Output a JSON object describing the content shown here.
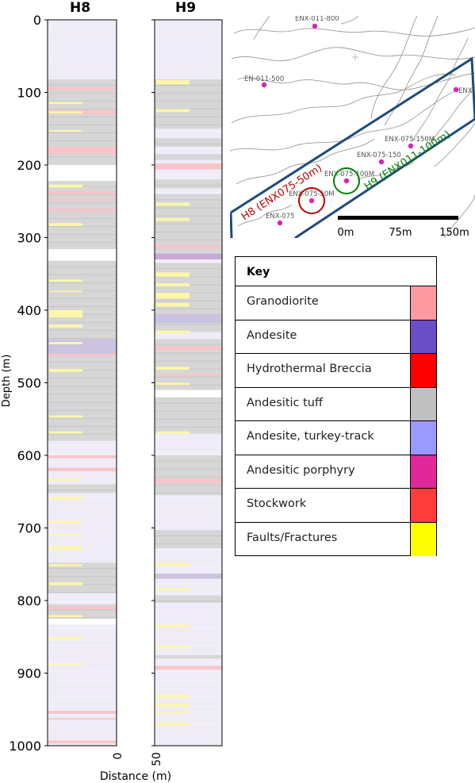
{
  "logs": [
    {
      "name": "H8",
      "base_color": "#efecf8",
      "segments": [
        {
          "from": 82,
          "to": 200,
          "lith": "Andesitic tuff"
        },
        {
          "from": 93,
          "to": 97,
          "lith": "Granodiorite"
        },
        {
          "from": 113,
          "to": 116,
          "lith": "Faults/Fractures"
        },
        {
          "from": 124,
          "to": 130,
          "lith": "Granodiorite"
        },
        {
          "from": 126,
          "to": 129,
          "lith": "Faults/Fractures"
        },
        {
          "from": 152,
          "to": 154,
          "lith": "Faults/Fractures"
        },
        {
          "from": 175,
          "to": 185,
          "lith": "Granodiorite"
        },
        {
          "from": 200,
          "to": 215,
          "lith": "blank"
        },
        {
          "from": 215,
          "to": 222,
          "lith": "blank"
        },
        {
          "from": 222,
          "to": 316,
          "lith": "Andesitic tuff"
        },
        {
          "from": 227,
          "to": 231,
          "lith": "Faults/Fractures"
        },
        {
          "from": 236,
          "to": 240,
          "lith": "Granodiorite"
        },
        {
          "from": 246,
          "to": 249,
          "lith": "Granodiorite"
        },
        {
          "from": 260,
          "to": 264,
          "lith": "Granodiorite"
        },
        {
          "from": 280,
          "to": 284,
          "lith": "Faults/Fractures"
        },
        {
          "from": 316,
          "to": 332,
          "lith": "blank"
        },
        {
          "from": 332,
          "to": 580,
          "lith": "Andesitic tuff"
        },
        {
          "from": 358,
          "to": 361,
          "lith": "Faults/Fractures"
        },
        {
          "from": 373,
          "to": 375,
          "lith": "Faults/Fractures"
        },
        {
          "from": 400,
          "to": 410,
          "lith": "Faults/Fractures"
        },
        {
          "from": 420,
          "to": 424,
          "lith": "Faults/Fractures"
        },
        {
          "from": 440,
          "to": 463,
          "lith": "Andesite, turkey-track"
        },
        {
          "from": 444,
          "to": 447,
          "lith": "Faults/Fractures"
        },
        {
          "from": 460,
          "to": 463,
          "lith": "Granodiorite"
        },
        {
          "from": 481,
          "to": 485,
          "lith": "Faults/Fractures"
        },
        {
          "from": 545,
          "to": 548,
          "lith": "Faults/Fractures"
        },
        {
          "from": 567,
          "to": 570,
          "lith": "Faults/Fractures"
        },
        {
          "from": 600,
          "to": 604,
          "lith": "Granodiorite"
        },
        {
          "from": 617,
          "to": 622,
          "lith": "Granodiorite"
        },
        {
          "from": 632,
          "to": 635,
          "lith": "Faults/Fractures"
        },
        {
          "from": 640,
          "to": 652,
          "lith": "Andesitic tuff"
        },
        {
          "from": 657,
          "to": 661,
          "lith": "Faults/Fractures"
        },
        {
          "from": 690,
          "to": 693,
          "lith": "Faults/Fractures"
        },
        {
          "from": 708,
          "to": 711,
          "lith": "Faults/Fractures"
        },
        {
          "from": 725,
          "to": 730,
          "lith": "Faults/Fractures"
        },
        {
          "from": 748,
          "to": 790,
          "lith": "Andesitic tuff"
        },
        {
          "from": 750,
          "to": 753,
          "lith": "Faults/Fractures"
        },
        {
          "from": 775,
          "to": 779,
          "lith": "Faults/Fractures"
        },
        {
          "from": 805,
          "to": 825,
          "lith": "Andesitic tuff"
        },
        {
          "from": 808,
          "to": 812,
          "lith": "Granodiorite"
        },
        {
          "from": 820,
          "to": 823,
          "lith": "Faults/Fractures"
        },
        {
          "from": 825,
          "to": 833,
          "lith": "blank"
        },
        {
          "from": 850,
          "to": 853,
          "lith": "Faults/Fractures"
        },
        {
          "from": 887,
          "to": 889,
          "lith": "Faults/Fractures"
        },
        {
          "from": 952,
          "to": 956,
          "lith": "Granodiorite"
        },
        {
          "from": 962,
          "to": 964,
          "lith": "Granodiorite"
        },
        {
          "from": 993,
          "to": 997,
          "lith": "Granodiorite"
        }
      ]
    },
    {
      "name": "H9",
      "base_color": "#efecf8",
      "segments": [
        {
          "from": 82,
          "to": 150,
          "lith": "Andesitic tuff"
        },
        {
          "from": 83,
          "to": 89,
          "lith": "Faults/Fractures"
        },
        {
          "from": 123,
          "to": 127,
          "lith": "Faults/Fractures"
        },
        {
          "from": 163,
          "to": 175,
          "lith": "Andesitic tuff"
        },
        {
          "from": 185,
          "to": 193,
          "lith": "Andesitic tuff"
        },
        {
          "from": 198,
          "to": 206,
          "lith": "Granodiorite"
        },
        {
          "from": 220,
          "to": 232,
          "lith": "Andesitic tuff"
        },
        {
          "from": 240,
          "to": 325,
          "lith": "Andesitic tuff"
        },
        {
          "from": 252,
          "to": 256,
          "lith": "Faults/Fractures"
        },
        {
          "from": 273,
          "to": 277,
          "lith": "Faults/Fractures"
        },
        {
          "from": 310,
          "to": 315,
          "lith": "Granodiorite"
        },
        {
          "from": 322,
          "to": 330,
          "lith": "Andesitic porphyry"
        },
        {
          "from": 335,
          "to": 430,
          "lith": "Andesitic tuff"
        },
        {
          "from": 348,
          "to": 354,
          "lith": "Faults/Fractures"
        },
        {
          "from": 363,
          "to": 367,
          "lith": "Faults/Fractures"
        },
        {
          "from": 376,
          "to": 384,
          "lith": "Faults/Fractures"
        },
        {
          "from": 390,
          "to": 395,
          "lith": "Faults/Fractures"
        },
        {
          "from": 405,
          "to": 418,
          "lith": "Andesite, turkey-track"
        },
        {
          "from": 428,
          "to": 432,
          "lith": "Faults/Fractures"
        },
        {
          "from": 440,
          "to": 510,
          "lith": "Andesitic tuff"
        },
        {
          "from": 450,
          "to": 455,
          "lith": "Granodiorite"
        },
        {
          "from": 478,
          "to": 482,
          "lith": "Faults/Fractures"
        },
        {
          "from": 488,
          "to": 491,
          "lith": "Granodiorite"
        },
        {
          "from": 500,
          "to": 503,
          "lith": "Faults/Fractures"
        },
        {
          "from": 510,
          "to": 520,
          "lith": "blank"
        },
        {
          "from": 520,
          "to": 570,
          "lith": "Andesitic tuff"
        },
        {
          "from": 567,
          "to": 570,
          "lith": "Faults/Fractures"
        },
        {
          "from": 600,
          "to": 655,
          "lith": "Andesitic tuff"
        },
        {
          "from": 632,
          "to": 638,
          "lith": "Granodiorite"
        },
        {
          "from": 703,
          "to": 728,
          "lith": "Andesitic tuff"
        },
        {
          "from": 748,
          "to": 752,
          "lith": "Faults/Fractures"
        },
        {
          "from": 763,
          "to": 770,
          "lith": "Andesite, turkey-track"
        },
        {
          "from": 783,
          "to": 786,
          "lith": "Faults/Fractures"
        },
        {
          "from": 793,
          "to": 803,
          "lith": "Andesitic tuff"
        },
        {
          "from": 833,
          "to": 836,
          "lith": "Faults/Fractures"
        },
        {
          "from": 862,
          "to": 866,
          "lith": "Faults/Fractures"
        },
        {
          "from": 875,
          "to": 880,
          "lith": "Andesitic tuff"
        },
        {
          "from": 890,
          "to": 895,
          "lith": "Granodiorite"
        },
        {
          "from": 930,
          "to": 934,
          "lith": "Faults/Fractures"
        },
        {
          "from": 942,
          "to": 946,
          "lith": "Faults/Fractures"
        },
        {
          "from": 952,
          "to": 955,
          "lith": "Faults/Fractures"
        },
        {
          "from": 968,
          "to": 972,
          "lith": "Faults/Fractures"
        }
      ]
    }
  ],
  "axis": {
    "ylabel": "Depth (m)",
    "xlabel": "Distance (m)",
    "ymin": 0,
    "ymax": 1000,
    "yticks": [
      0,
      100,
      200,
      300,
      400,
      500,
      600,
      700,
      800,
      900,
      1000
    ],
    "x_tick_labels": [
      "0",
      "50"
    ]
  },
  "map": {
    "scale_labels": [
      "0m",
      "75m",
      "150m"
    ],
    "drillholes": [
      {
        "label": "ENX-011-800",
        "color": "#d726b5"
      },
      {
        "label": "EN-011-500",
        "color": "#d726b5"
      },
      {
        "label": "ENX-075-150M",
        "color": "#d726b5"
      },
      {
        "label": "ENX-075-150",
        "color": "#d726b5"
      },
      {
        "label": "ENX-075-100M",
        "color": "#d726b5"
      },
      {
        "label": "ENX-075-50M",
        "color": "#d726b5"
      },
      {
        "label": "ENX-075",
        "color": "#d726b5"
      },
      {
        "label": "ENX",
        "color": "#d726b5"
      }
    ],
    "section_labels": [
      {
        "text": "H8 (ENX075-50m)",
        "color": "#c00000"
      },
      {
        "text": "H9 (ENX011-100m)",
        "color": "#008000"
      }
    ],
    "section_line_color": "#1f4b7a"
  },
  "key": {
    "title": "Key",
    "items": [
      {
        "label": "Granodiorite",
        "color": "#ff9aa2"
      },
      {
        "label": "Andesite",
        "color": "#6a4ec8"
      },
      {
        "label": "Hydrothermal Breccia",
        "color": "#ff0000"
      },
      {
        "label": "Andesitic tuff",
        "color": "#c0c0c0"
      },
      {
        "label": "Andesite, turkey-track",
        "color": "#9999ff"
      },
      {
        "label": "Andesitic porphyry",
        "color": "#e0289a"
      },
      {
        "label": "Stockwork",
        "color": "#ff3b3b"
      },
      {
        "label": "Faults/Fractures",
        "color": "#ffff00"
      }
    ]
  },
  "log_display_colors": {
    "Granodiorite": "#f8c4c8",
    "Andesitic tuff": "#d6d6d6",
    "Faults/Fractures": "#fff7a8",
    "Andesite, turkey-track": "#cbc3df",
    "Andesitic porphyry": "#c8a8d8",
    "blank": "#ffffff"
  }
}
